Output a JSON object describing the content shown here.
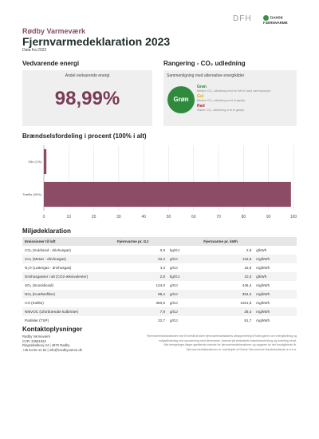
{
  "header": {
    "company": "Rødby Varmeværk",
    "title": "Fjernvarmedeklaration 2023",
    "subtitle": "Data fra 2022",
    "logo_left": "DFH",
    "logo_right": "DANSK FJERNVARME"
  },
  "renewable": {
    "heading": "Vedvarende energi",
    "caption": "Andel vedvarende energi",
    "value": "98,99%"
  },
  "ranking": {
    "heading": "Rangering - CO₂ udledning",
    "caption": "Sammenligning med alternative energikilder",
    "badge": "Grøn",
    "levels": [
      {
        "name": "Grøn",
        "text": "Mindre CO₂ udledning end en luft til vand varmepumpe"
      },
      {
        "name": "Gul",
        "text": "Mindre CO₂ udledning end et gasfyr"
      },
      {
        "name": "Rød",
        "text": "Større CO₂ udledning end et gasfyr"
      }
    ]
  },
  "chart_data": {
    "type": "barh",
    "title": "Brændselsfordeling i procent (100% i alt)",
    "categories": [
      "Olie (1%)",
      "Træflis (99%)"
    ],
    "values": [
      1.01,
      98.99
    ],
    "color": "#8c4c66",
    "xlim": [
      0,
      100
    ],
    "xticks": [
      0,
      10,
      20,
      30,
      40,
      50,
      60,
      70,
      80,
      90,
      100
    ],
    "grid": true
  },
  "environment": {
    "heading": "Miljødeklaration",
    "columns": [
      "Emissioner til luft",
      "Fjernvarme pr. GJ",
      "Fjernvarme pr. kWh"
    ],
    "rows": [
      [
        "CO₂ (Kuldioxid - drivhusgas)",
        "0,8",
        "kg/GJ",
        "2,9",
        "g/kWh"
      ],
      [
        "CH₄ (Metan - drivhusgas)",
        "32,4",
        "g/GJ",
        "116,6",
        "mg/kWh"
      ],
      [
        "N₂O (Lattergas - drivhusgas)",
        "4,3",
        "g/GJ",
        "15,5",
        "mg/kWh"
      ],
      [
        "Drivhusgasser i alt (CO2-ækvivalenter)",
        "2,8",
        "kg/GJ",
        "10,3",
        "g/kWh"
      ],
      [
        "SO₂ (Svovldioxid)",
        "124,0",
        "g/GJ",
        "446,4",
        "mg/kWh"
      ],
      [
        "NOₓ (Kvælstofilter)",
        "98,4",
        "g/GJ",
        "354,2",
        "mg/kWh"
      ],
      [
        "CO (Kulilte)",
        "350,5",
        "g/GJ",
        "1261,8",
        "mg/kWh"
      ],
      [
        "NMVOC (Uforbrændte kulbrinter)",
        "7,9",
        "g/GJ",
        "28,4",
        "mg/kWh"
      ],
      [
        "Partikler (TSP)",
        "22,7",
        "g/GJ",
        "81,7",
        "mg/kWh"
      ]
    ]
  },
  "contact": {
    "heading": "Kontaktoplysninger",
    "lines": [
      "Rødby Varmeværk",
      "CVR: 34561923",
      "Ringsebøllevej 24 | 4970 Rødby",
      "+45 54 60 14 62 | info@roedbyvarme.dk"
    ],
    "note": [
      "Fjernvarmedeklarationen har til formål at sikre fjernvarmeselskabets afrapportering til forbrugeren om energiforbrug og",
      "miljøpåvirkning ved opvarmning med fjernvarme, baseret på selskabets brændselsforbrug og fordeling heraf.",
      "Alle beregninger følger gældende metode for fjernvarmedeklarationer og opgøres for det forudgående år.",
      "Fjernvarmedeklarationen er udarbejdet af Dansk Fjernvarmes Handelsselskab a.m.b.a."
    ]
  }
}
